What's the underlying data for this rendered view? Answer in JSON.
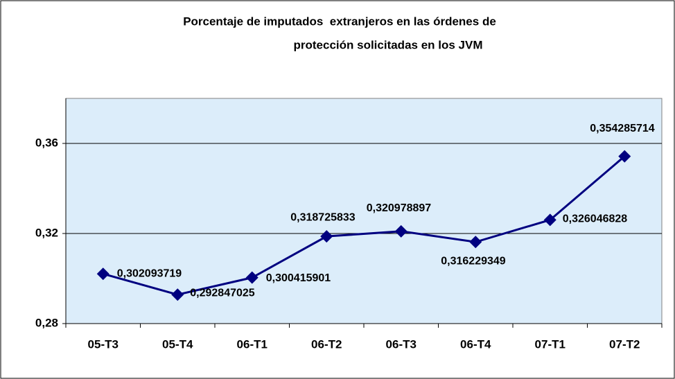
{
  "chart_data": {
    "type": "line",
    "title": [
      "Porcentaje de imputados  extranjeros en las órdenes de",
      "protección solicitadas en los JVM"
    ],
    "categories": [
      "05-T3",
      "05-T4",
      "06-T1",
      "06-T2",
      "06-T3",
      "06-T4",
      "07-T1",
      "07-T2"
    ],
    "values": [
      0.302093719,
      0.292847025,
      0.300415901,
      0.318725833,
      0.320978897,
      0.316229349,
      0.326046828,
      0.354285714
    ],
    "value_labels": [
      "0,302093719",
      "0,292847025",
      "0,300415901",
      "0,318725833",
      "0,320978897",
      "0,316229349",
      "0,326046828",
      "0,354285714"
    ],
    "color": "#000080",
    "ylim": [
      0.28,
      0.38
    ],
    "yticks": [
      {
        "value": 0.28,
        "label": "0,28"
      },
      {
        "value": 0.32,
        "label": "0,32"
      },
      {
        "value": 0.36,
        "label": "0,36"
      }
    ],
    "grid": true
  }
}
